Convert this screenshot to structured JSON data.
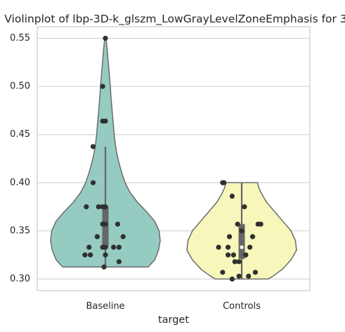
{
  "chart_data": {
    "type": "violin",
    "title": "Violinplot of lbp-3D-k_glszm_LowGrayLevelZoneEmphasis for 3",
    "xlabel": "target",
    "ylabel": "",
    "categories": [
      "Baseline",
      "Controls"
    ],
    "ylim": [
      0.288,
      0.562
    ],
    "yticks": [
      0.3,
      0.35,
      0.4,
      0.45,
      0.5,
      0.55
    ],
    "ytick_labels": [
      "0.30",
      "0.35",
      "0.40",
      "0.45",
      "0.50",
      "0.55"
    ],
    "grid": true,
    "colors": {
      "Baseline": "#96cbc1",
      "Controls": "#f7f7bb",
      "outline": "#6b6b6b",
      "points": "#303030",
      "box": "#666666",
      "grid": "#cccccc",
      "spine": "#cccccc"
    },
    "violins": [
      {
        "category": "Baseline",
        "min": 0.3125,
        "max": 0.55,
        "quartiles": [
          0.333,
          0.375
        ],
        "median": 0.357,
        "whiskers": [
          0.3125,
          0.4375
        ],
        "density": [
          [
            0.3125,
            0.78
          ],
          [
            0.315,
            0.82
          ],
          [
            0.32,
            0.9
          ],
          [
            0.33,
            0.97
          ],
          [
            0.34,
            1.0
          ],
          [
            0.35,
            0.98
          ],
          [
            0.36,
            0.9
          ],
          [
            0.37,
            0.75
          ],
          [
            0.38,
            0.58
          ],
          [
            0.39,
            0.45
          ],
          [
            0.4,
            0.36
          ],
          [
            0.41,
            0.3
          ],
          [
            0.42,
            0.25
          ],
          [
            0.43,
            0.21
          ],
          [
            0.44,
            0.18
          ],
          [
            0.45,
            0.16
          ],
          [
            0.46,
            0.145
          ],
          [
            0.47,
            0.13
          ],
          [
            0.48,
            0.115
          ],
          [
            0.49,
            0.1
          ],
          [
            0.5,
            0.09
          ],
          [
            0.51,
            0.075
          ],
          [
            0.52,
            0.06
          ],
          [
            0.53,
            0.045
          ],
          [
            0.54,
            0.03
          ],
          [
            0.55,
            0.012
          ]
        ],
        "points": [
          {
            "offset": 0.0,
            "value": 0.55
          },
          {
            "offset": -0.02,
            "value": 0.5
          },
          {
            "offset": -0.02,
            "value": 0.464
          },
          {
            "offset": 0.0,
            "value": 0.464
          },
          {
            "offset": -0.09,
            "value": 0.4375
          },
          {
            "offset": -0.09,
            "value": 0.4
          },
          {
            "offset": -0.14,
            "value": 0.375
          },
          {
            "offset": -0.05,
            "value": 0.375
          },
          {
            "offset": -0.02,
            "value": 0.375
          },
          {
            "offset": 0.0,
            "value": 0.375
          },
          {
            "offset": -0.02,
            "value": 0.357
          },
          {
            "offset": 0.0,
            "value": 0.357
          },
          {
            "offset": 0.09,
            "value": 0.357
          },
          {
            "offset": -0.06,
            "value": 0.344
          },
          {
            "offset": 0.13,
            "value": 0.344
          },
          {
            "offset": -0.12,
            "value": 0.333
          },
          {
            "offset": -0.02,
            "value": 0.333
          },
          {
            "offset": 0.0,
            "value": 0.333
          },
          {
            "offset": 0.06,
            "value": 0.333
          },
          {
            "offset": 0.1,
            "value": 0.333
          },
          {
            "offset": -0.15,
            "value": 0.325
          },
          {
            "offset": -0.11,
            "value": 0.325
          },
          {
            "offset": 0.0,
            "value": 0.325
          },
          {
            "offset": 0.1,
            "value": 0.318
          },
          {
            "offset": -0.01,
            "value": 0.3125
          }
        ]
      },
      {
        "category": "Controls",
        "min": 0.3,
        "max": 0.4,
        "quartiles": [
          0.321,
          0.357
        ],
        "median": 0.333,
        "whiskers": [
          0.3,
          0.4
        ],
        "density": [
          [
            0.3,
            0.48
          ],
          [
            0.303,
            0.57
          ],
          [
            0.31,
            0.74
          ],
          [
            0.32,
            0.9
          ],
          [
            0.33,
            1.0
          ],
          [
            0.34,
            0.98
          ],
          [
            0.35,
            0.9
          ],
          [
            0.36,
            0.75
          ],
          [
            0.37,
            0.6
          ],
          [
            0.38,
            0.45
          ],
          [
            0.39,
            0.35
          ],
          [
            0.395,
            0.31
          ],
          [
            0.4,
            0.29
          ]
        ],
        "points": [
          {
            "offset": -0.14,
            "value": 0.4
          },
          {
            "offset": -0.13,
            "value": 0.4
          },
          {
            "offset": -0.07,
            "value": 0.386
          },
          {
            "offset": 0.02,
            "value": 0.375
          },
          {
            "offset": 0.12,
            "value": 0.357
          },
          {
            "offset": 0.14,
            "value": 0.357
          },
          {
            "offset": -0.03,
            "value": 0.357
          },
          {
            "offset": 0.0,
            "value": 0.35
          },
          {
            "offset": -0.09,
            "value": 0.344
          },
          {
            "offset": 0.08,
            "value": 0.344
          },
          {
            "offset": -0.17,
            "value": 0.333
          },
          {
            "offset": -0.1,
            "value": 0.333
          },
          {
            "offset": 0.06,
            "value": 0.333
          },
          {
            "offset": -0.1,
            "value": 0.325
          },
          {
            "offset": -0.06,
            "value": 0.325
          },
          {
            "offset": 0.03,
            "value": 0.325
          },
          {
            "offset": -0.05,
            "value": 0.318
          },
          {
            "offset": -0.02,
            "value": 0.318
          },
          {
            "offset": -0.14,
            "value": 0.307
          },
          {
            "offset": 0.1,
            "value": 0.307
          },
          {
            "offset": -0.02,
            "value": 0.303
          },
          {
            "offset": 0.05,
            "value": 0.303
          },
          {
            "offset": -0.07,
            "value": 0.3
          }
        ]
      }
    ]
  }
}
